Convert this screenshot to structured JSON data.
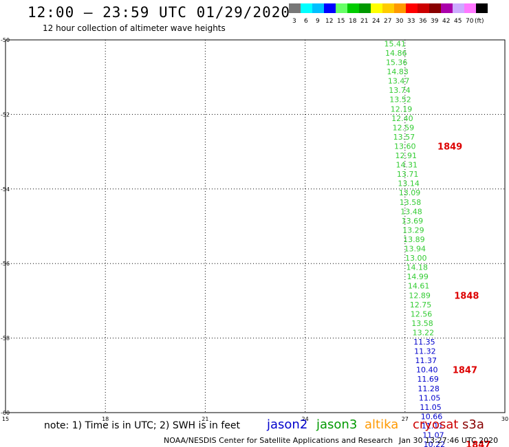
{
  "header": {
    "title": "12:00 – 23:59 UTC 01/29/2020",
    "subtitle": "12 hour collection of altimeter wave heights"
  },
  "color_scale": {
    "colors": [
      "#777777",
      "#00ffff",
      "#00bfff",
      "#0000ff",
      "#66ff66",
      "#00cc00",
      "#009900",
      "#ffff00",
      "#ffcc00",
      "#ff9900",
      "#ff0000",
      "#cc0000",
      "#880000",
      "#aa00aa",
      "#ccaaff",
      "#ff77ff",
      "#000000"
    ],
    "labels": [
      "3",
      "6",
      "9",
      "12",
      "15",
      "18",
      "21",
      "24",
      "27",
      "30",
      "33",
      "36",
      "39",
      "42",
      "45",
      "70",
      "(ft)"
    ]
  },
  "footer": {
    "note": "note:  1) Time is in UTC;  2) SWH is in feet",
    "credit": "NOAA/NESDIS Center for Satellite Applications and Research",
    "timestamp": "Jan 30 13:27:46 UTC 2020"
  },
  "satellites": [
    {
      "name": "jason2",
      "color": "#0000cc"
    },
    {
      "name": "jason3",
      "color": "#009900"
    },
    {
      "name": "altika",
      "color": "#ff9900"
    },
    {
      "name": "cryosat",
      "color": "#cc0000"
    },
    {
      "name": "s3a",
      "color": "#880000"
    }
  ],
  "chart_data": {
    "type": "scatter",
    "xlim": [
      15,
      30
    ],
    "ylim": [
      -60,
      -50
    ],
    "x_ticks": [
      "15",
      "18",
      "21",
      "24",
      "27",
      "30"
    ],
    "y_ticks": [
      "-50",
      "-52",
      "-54",
      "-56",
      "-58",
      "-60"
    ],
    "grid": true,
    "series": [
      {
        "color": "#33cc33",
        "points": [
          {
            "lon": 26.7,
            "lat": -50.1,
            "v": "15.41"
          },
          {
            "lon": 26.73,
            "lat": -50.35,
            "v": "14.86"
          },
          {
            "lon": 26.75,
            "lat": -50.6,
            "v": "15.36"
          },
          {
            "lon": 26.78,
            "lat": -50.85,
            "v": "14.83"
          },
          {
            "lon": 26.81,
            "lat": -51.1,
            "v": "13.47"
          },
          {
            "lon": 26.84,
            "lat": -51.35,
            "v": "13.74"
          },
          {
            "lon": 26.86,
            "lat": -51.6,
            "v": "13.52"
          },
          {
            "lon": 26.89,
            "lat": -51.85,
            "v": "12.19"
          },
          {
            "lon": 26.92,
            "lat": -52.1,
            "v": "12.40"
          },
          {
            "lon": 26.95,
            "lat": -52.35,
            "v": "12.59"
          },
          {
            "lon": 26.97,
            "lat": -52.6,
            "v": "13.57"
          },
          {
            "lon": 27.0,
            "lat": -52.85,
            "v": "13.60"
          },
          {
            "lon": 27.03,
            "lat": -53.1,
            "v": "12.91"
          },
          {
            "lon": 27.05,
            "lat": -53.35,
            "v": "14.31"
          },
          {
            "lon": 27.08,
            "lat": -53.6,
            "v": "13.71"
          },
          {
            "lon": 27.11,
            "lat": -53.85,
            "v": "13.14"
          },
          {
            "lon": 27.14,
            "lat": -54.1,
            "v": "13.09"
          },
          {
            "lon": 27.16,
            "lat": -54.35,
            "v": "13.58"
          },
          {
            "lon": 27.19,
            "lat": -54.6,
            "v": "13.48"
          },
          {
            "lon": 27.22,
            "lat": -54.85,
            "v": "13.69"
          },
          {
            "lon": 27.25,
            "lat": -55.1,
            "v": "13.29"
          },
          {
            "lon": 27.27,
            "lat": -55.35,
            "v": "13.89"
          },
          {
            "lon": 27.3,
            "lat": -55.6,
            "v": "13.94"
          },
          {
            "lon": 27.33,
            "lat": -55.85,
            "v": "13.00"
          },
          {
            "lon": 27.36,
            "lat": -56.1,
            "v": "14.18"
          },
          {
            "lon": 27.38,
            "lat": -56.35,
            "v": "14.99"
          },
          {
            "lon": 27.41,
            "lat": -56.6,
            "v": "14.61"
          },
          {
            "lon": 27.44,
            "lat": -56.85,
            "v": "12.89"
          },
          {
            "lon": 27.47,
            "lat": -57.1,
            "v": "12.75"
          },
          {
            "lon": 27.49,
            "lat": -57.35,
            "v": "12.56"
          },
          {
            "lon": 27.52,
            "lat": -57.6,
            "v": "13.58"
          },
          {
            "lon": 27.55,
            "lat": -57.85,
            "v": "13.22"
          }
        ]
      },
      {
        "color": "#0000cc",
        "points": [
          {
            "lon": 27.58,
            "lat": -58.1,
            "v": "11.35"
          },
          {
            "lon": 27.6,
            "lat": -58.35,
            "v": "11.32"
          },
          {
            "lon": 27.63,
            "lat": -58.6,
            "v": "11.37"
          },
          {
            "lon": 27.66,
            "lat": -58.85,
            "v": "10.40"
          },
          {
            "lon": 27.69,
            "lat": -59.1,
            "v": "11.69"
          },
          {
            "lon": 27.71,
            "lat": -59.35,
            "v": "11.28"
          },
          {
            "lon": 27.74,
            "lat": -59.6,
            "v": "11.05"
          },
          {
            "lon": 27.77,
            "lat": -59.85,
            "v": "11.05"
          },
          {
            "lon": 27.8,
            "lat": -60.1,
            "v": "10.66"
          },
          {
            "lon": 27.82,
            "lat": -60.35,
            "v": "11.11"
          },
          {
            "lon": 27.85,
            "lat": -60.6,
            "v": "11.07"
          },
          {
            "lon": 27.88,
            "lat": -60.85,
            "v": "10.22"
          }
        ]
      }
    ],
    "pass_labels": [
      {
        "lon": 28.35,
        "lat": -52.85,
        "text": "1849"
      },
      {
        "lon": 28.85,
        "lat": -56.85,
        "text": "1848"
      },
      {
        "lon": 28.8,
        "lat": -58.85,
        "text": "1847"
      },
      {
        "lon": 29.2,
        "lat": -60.85,
        "text": "1847"
      }
    ]
  }
}
